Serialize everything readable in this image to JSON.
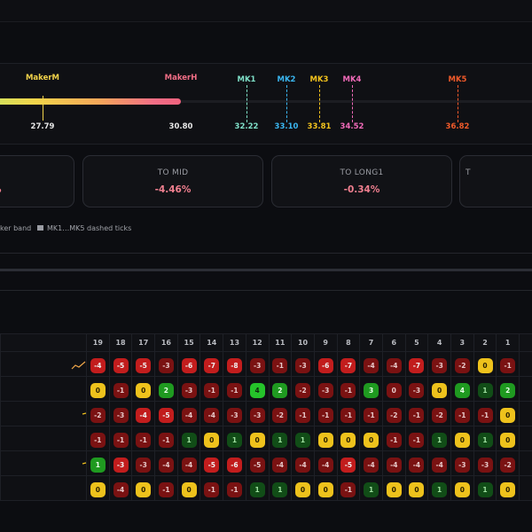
{
  "markers": [
    {
      "label": "MakerM",
      "value": "27.79",
      "color": "#f2d34a",
      "line": "solid",
      "label_x": 48,
      "val_x": 48
    },
    {
      "label": "MakerH",
      "value": "30.80",
      "color": "#f26e86",
      "line": "none",
      "label_x": 204,
      "val_x": 204
    },
    {
      "label": "MK1",
      "value": "32.22",
      "color": "#7fe0c8",
      "line": "dashed",
      "label_x": 278,
      "val_x": 278
    },
    {
      "label": "MK2",
      "value": "33.10",
      "color": "#3ab6f0",
      "line": "dashed",
      "label_x": 323,
      "val_x": 323
    },
    {
      "label": "MK3",
      "value": "33.81",
      "color": "#f2c21d",
      "line": "dashed",
      "label_x": 360,
      "val_x": 360
    },
    {
      "label": "MK4",
      "value": "34.52",
      "color": "#f06ab8",
      "line": "dashed",
      "label_x": 397,
      "val_x": 397
    },
    {
      "label": "MK5",
      "value": "36.82",
      "color": "#f05a2a",
      "line": "dashed",
      "label_x": 516,
      "val_x": 516
    }
  ],
  "stat_cards": [
    {
      "title": "",
      "value": "%"
    },
    {
      "title": "TO MID",
      "value": "-4.46%"
    },
    {
      "title": "TO LONG1",
      "value": "-0.34%"
    },
    {
      "title": "T",
      "value": ""
    }
  ],
  "legend": [
    {
      "text": "ker band"
    },
    {
      "text": "MK1…MK5 dashed ticks"
    }
  ],
  "table": {
    "columns": [
      "19",
      "18",
      "17",
      "16",
      "15",
      "14",
      "13",
      "12",
      "11",
      "10",
      "9",
      "8",
      "7",
      "6",
      "5",
      "4",
      "3",
      "2",
      "1"
    ],
    "rows": [
      {
        "values": [
          "-4",
          "-5",
          "-5",
          "-3",
          "-6",
          "-7",
          "-8",
          "-3",
          "-1",
          "-3",
          "-6",
          "-7",
          "-4",
          "-4",
          "-7",
          "-3",
          "-2",
          "0",
          "-1"
        ],
        "colors": [
          "red",
          "red",
          "red",
          "dred",
          "red",
          "red",
          "red",
          "dred",
          "dred",
          "dred",
          "red",
          "red",
          "dred",
          "dred",
          "red",
          "dred",
          "dred",
          "yel",
          "dred"
        ],
        "spark": "#f2a84a"
      },
      {
        "values": [
          "0",
          "-1",
          "0",
          "2",
          "-3",
          "-1",
          "-1",
          "4",
          "2",
          "-2",
          "-3",
          "-1",
          "3",
          "0",
          "-3",
          "0",
          "4",
          "1",
          "2"
        ],
        "colors": [
          "yel",
          "dred",
          "yel",
          "grn",
          "dred",
          "dred",
          "dred",
          "bgrn",
          "grn",
          "dred",
          "dred",
          "dred",
          "grn",
          "dred",
          "dred",
          "yel",
          "grn",
          "dgrn",
          "grn"
        ],
        "spark": ""
      },
      {
        "values": [
          "-2",
          "-3",
          "-4",
          "-5",
          "-4",
          "-4",
          "-3",
          "-3",
          "-2",
          "-1",
          "-1",
          "-1",
          "-1",
          "-2",
          "-1",
          "-2",
          "-1",
          "-1",
          "0"
        ],
        "colors": [
          "dred",
          "dred",
          "red",
          "red",
          "dred",
          "dred",
          "dred",
          "dred",
          "dred",
          "dred",
          "dred",
          "dred",
          "dred",
          "dred",
          "dred",
          "dred",
          "dred",
          "dred",
          "yel"
        ],
        "spark": "#f2c21d"
      },
      {
        "values": [
          "-1",
          "-1",
          "-1",
          "-1",
          "1",
          "0",
          "1",
          "0",
          "1",
          "1",
          "0",
          "0",
          "0",
          "-1",
          "-1",
          "1",
          "0",
          "1",
          "0"
        ],
        "colors": [
          "dred",
          "dred",
          "dred",
          "dred",
          "dgrn",
          "yel",
          "dgrn",
          "yel",
          "dgrn",
          "dgrn",
          "yel",
          "yel",
          "yel",
          "dred",
          "dred",
          "dgrn",
          "yel",
          "dgrn",
          "yel"
        ],
        "spark": ""
      },
      {
        "values": [
          "1",
          "-3",
          "-3",
          "-4",
          "-4",
          "-5",
          "-6",
          "-5",
          "-4",
          "-4",
          "-4",
          "-5",
          "-4",
          "-4",
          "-4",
          "-4",
          "-3",
          "-3",
          "-2"
        ],
        "colors": [
          "grn",
          "red",
          "dred",
          "dred",
          "dred",
          "red",
          "red",
          "dred",
          "dred",
          "dred",
          "dred",
          "red",
          "dred",
          "dred",
          "dred",
          "dred",
          "dred",
          "dred",
          "dred"
        ],
        "spark": "#f2c21d"
      },
      {
        "values": [
          "0",
          "-4",
          "0",
          "-1",
          "0",
          "-1",
          "-1",
          "1",
          "1",
          "0",
          "0",
          "-1",
          "1",
          "0",
          "0",
          "1",
          "0",
          "1",
          "0"
        ],
        "colors": [
          "yel",
          "dred",
          "yel",
          "dred",
          "yel",
          "dred",
          "dred",
          "dgrn",
          "dgrn",
          "yel",
          "yel",
          "dred",
          "dgrn",
          "yel",
          "yel",
          "dgrn",
          "yel",
          "dgrn",
          "yel"
        ],
        "spark": ""
      }
    ]
  }
}
